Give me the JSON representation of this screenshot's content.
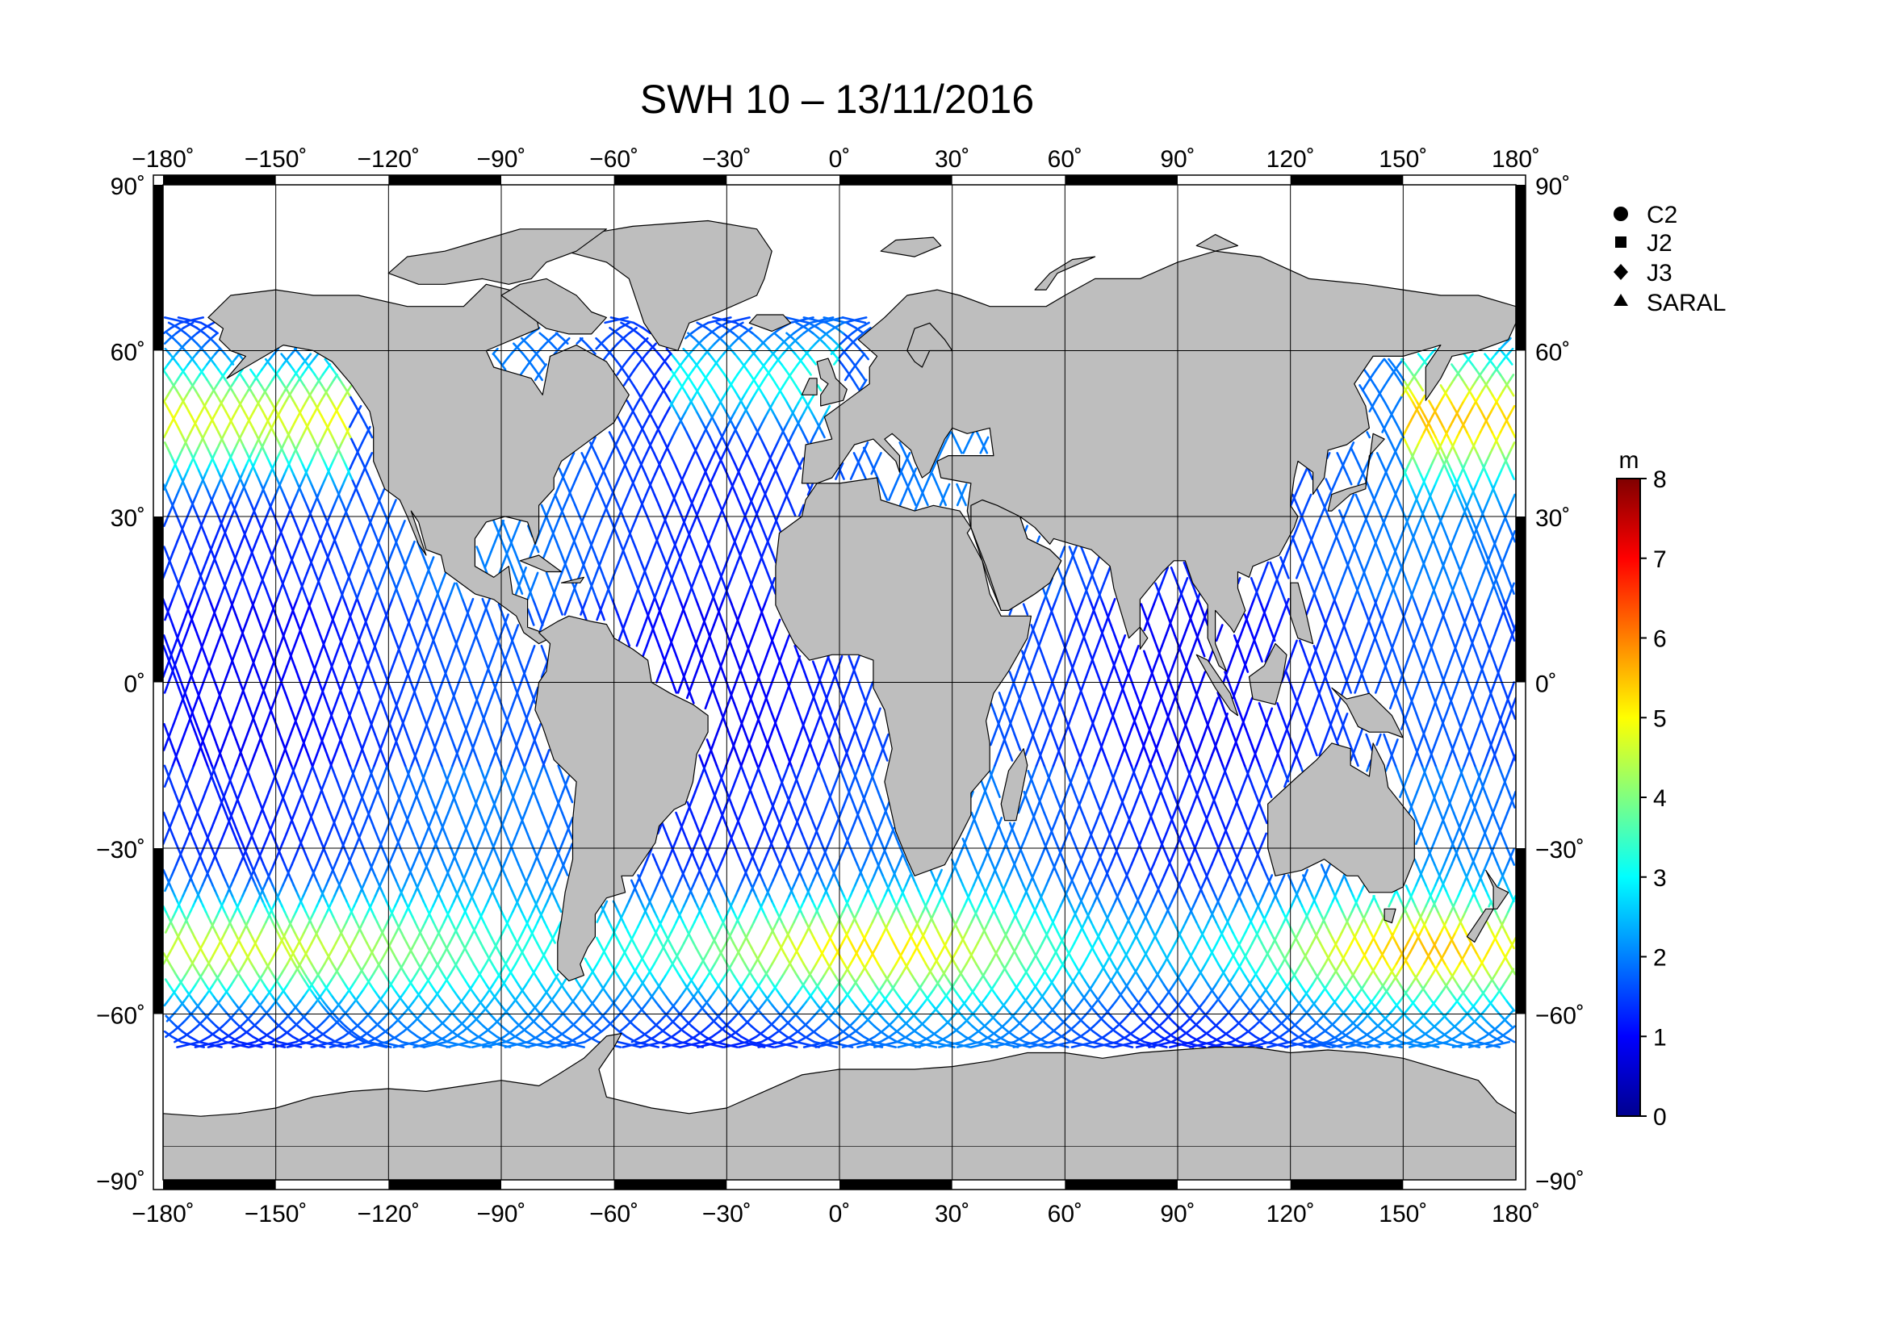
{
  "title": "SWH 10 – 13/11/2016",
  "map": {
    "projection": "equirectangular",
    "lon_range": [
      -180,
      180
    ],
    "lat_range": [
      -90,
      90
    ],
    "lon_ticks": [
      "−180˚",
      "−150˚",
      "−120˚",
      "−90˚",
      "−60˚",
      "−30˚",
      "0˚",
      "30˚",
      "60˚",
      "90˚",
      "120˚",
      "150˚",
      "180˚"
    ],
    "lon_tick_values": [
      -180,
      -150,
      -120,
      -90,
      -60,
      -30,
      0,
      30,
      60,
      90,
      120,
      150,
      180
    ],
    "lat_ticks": [
      "90˚",
      "60˚",
      "30˚",
      "0˚",
      "−30˚",
      "−60˚",
      "−90˚"
    ],
    "lat_tick_values": [
      90,
      60,
      30,
      0,
      -30,
      -60,
      -90
    ],
    "grid": true,
    "land_color": "#bebebe",
    "ocean_color": "#ffffff",
    "coastline_color": "#000000"
  },
  "legend": {
    "placement": "top-right",
    "items": [
      {
        "label": "C2",
        "symbol": "circle"
      },
      {
        "label": "J2",
        "symbol": "square"
      },
      {
        "label": "J3",
        "symbol": "diamond"
      },
      {
        "label": "SARAL",
        "symbol": "triangle"
      }
    ]
  },
  "colorbar": {
    "unit": "m",
    "min": 0,
    "max": 8,
    "tick_labels": [
      "8",
      "7",
      "6",
      "5",
      "4",
      "3",
      "2",
      "1",
      "0"
    ],
    "tick_values": [
      8,
      7,
      6,
      5,
      4,
      3,
      2,
      1,
      0
    ],
    "colormap": [
      "#00008f",
      "#0000ff",
      "#0080ff",
      "#00ffff",
      "#80ff80",
      "#ffff00",
      "#ff8000",
      "#ff0000",
      "#800000"
    ]
  }
}
